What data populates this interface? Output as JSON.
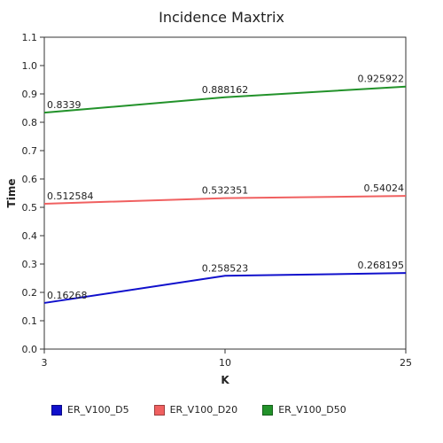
{
  "chart_data": {
    "type": "line",
    "title": "Incidence Maxtrix",
    "xlabel": "K",
    "ylabel": "Time",
    "categories": [
      "3",
      "10",
      "25"
    ],
    "ylim": [
      0,
      1.1
    ],
    "yticks": [
      "0.0",
      "0.1",
      "0.2",
      "0.3",
      "0.4",
      "0.5",
      "0.6",
      "0.7",
      "0.8",
      "0.9",
      "1.0",
      "1.1"
    ],
    "grid": false,
    "legend_position": "bottom",
    "series": [
      {
        "name": "ER_V100_D5",
        "color": "#1010cc",
        "values": [
          0.16268,
          0.258523,
          0.268195
        ],
        "labels": [
          "0.16268",
          "0.258523",
          "0.268195"
        ]
      },
      {
        "name": "ER_V100_D20",
        "color": "#f06060",
        "values": [
          0.512584,
          0.532351,
          0.54024
        ],
        "labels": [
          "0.512584",
          "0.532351",
          "0.54024"
        ]
      },
      {
        "name": "ER_V100_D50",
        "color": "#22922a",
        "values": [
          0.8339,
          0.888162,
          0.925922
        ],
        "labels": [
          "0.8339",
          "0.888162",
          "0.925922"
        ]
      }
    ]
  }
}
